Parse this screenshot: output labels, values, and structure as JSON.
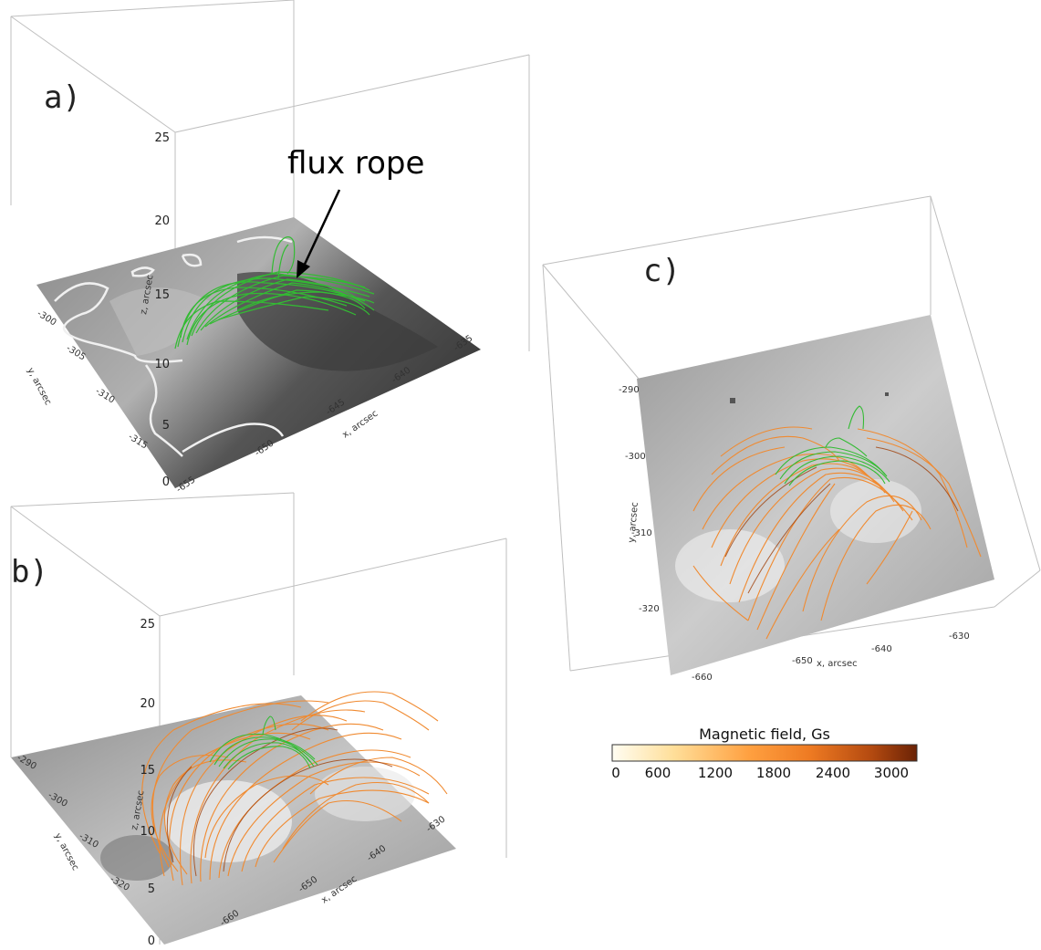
{
  "panels": {
    "a": {
      "label": "a)",
      "annotation": "flux rope",
      "z_label": "z, arcsec",
      "y_label": "y, arcsec",
      "x_label": "x, arcsec",
      "z_ticks": [
        "0",
        "5",
        "10",
        "15",
        "20",
        "25"
      ],
      "y_ticks": [
        "-300",
        "-305",
        "-310",
        "-315"
      ],
      "x_ticks": [
        "-655",
        "-650",
        "-645",
        "-640",
        "-635"
      ]
    },
    "b": {
      "label": "b)",
      "z_label": "z, arcsec",
      "y_label": "y, arcsec",
      "x_label": "x, arcsec",
      "z_ticks": [
        "0",
        "5",
        "10",
        "15",
        "20",
        "25"
      ],
      "y_ticks": [
        "-290",
        "-300",
        "-310",
        "-320"
      ],
      "x_ticks": [
        "-660",
        "-650",
        "-640",
        "-630"
      ]
    },
    "c": {
      "label": "c)",
      "y_label": "y, arcsec",
      "x_label": "x, arcsec",
      "y_ticks": [
        "-290",
        "-300",
        "-310",
        "-320"
      ],
      "x_ticks": [
        "-660",
        "-650",
        "-640",
        "-630"
      ]
    }
  },
  "colorbar": {
    "title": "Magnetic field, Gs",
    "ticks": [
      "0",
      "600",
      "1200",
      "1800",
      "2400",
      "3000"
    ],
    "colors": [
      "#fffdf2",
      "#ffdf9a",
      "#ffa040",
      "#ee7a22",
      "#b44a10",
      "#6a2205"
    ]
  },
  "line_colors": {
    "flux_rope": "#33bb33",
    "field_lines": "#f08a30"
  }
}
